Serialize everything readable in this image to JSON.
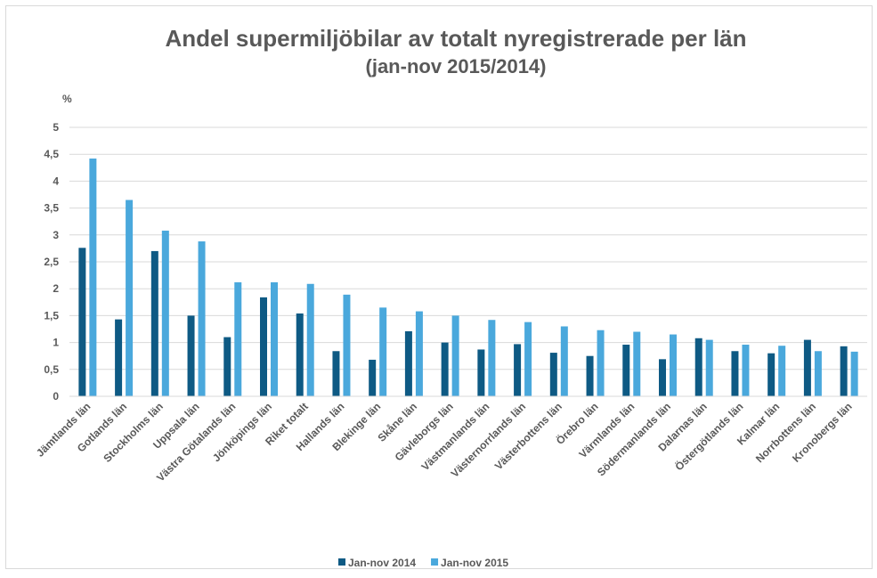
{
  "chart_data": {
    "type": "bar",
    "title": "Andel supermiljöbilar av totalt nyregistrerade per län",
    "subtitle": "(jan-nov 2015/2014)",
    "y_label": "%",
    "categories": [
      "Jämtlands län",
      "Gotlands län",
      "Stockholms län",
      "Uppsala län",
      "Västra Götalands län",
      "Jönköpings län",
      "Riket totalt",
      "Hallands län",
      "Blekinge län",
      "Skåne län",
      "Gävleborgs län",
      "Västmanlands län",
      "Västernorrlands län",
      "Västerbottens län",
      "Örebro län",
      "Värmlands län",
      "Södermanlands län",
      "Dalarnas län",
      "Östergötlands län",
      "Kalmar län",
      "Norrbottens län",
      "Kronobergs län"
    ],
    "series": [
      {
        "name": "Jan-nov 2014",
        "color": "#0e5a84",
        "values": [
          2.76,
          1.43,
          2.7,
          1.5,
          1.1,
          1.84,
          1.54,
          0.84,
          0.68,
          1.21,
          1.0,
          0.87,
          0.97,
          0.81,
          0.75,
          0.96,
          0.69,
          1.08,
          0.84,
          0.8,
          1.05,
          0.93
        ]
      },
      {
        "name": "Jan-nov 2015",
        "color": "#4aa8dc",
        "values": [
          4.42,
          3.65,
          3.08,
          2.88,
          2.12,
          2.12,
          2.09,
          1.89,
          1.65,
          1.58,
          1.5,
          1.42,
          1.38,
          1.3,
          1.23,
          1.2,
          1.15,
          1.05,
          0.96,
          0.94,
          0.84,
          0.83
        ]
      }
    ],
    "ylim": [
      0,
      5
    ],
    "yticks": [
      0,
      {
        "value": 0.5,
        "label": "0,5"
      },
      1,
      {
        "value": 1.5,
        "label": "1,5"
      },
      2,
      {
        "value": 2.5,
        "label": "2,5"
      },
      3,
      {
        "value": 3.5,
        "label": "3,5"
      },
      4,
      {
        "value": 4.5,
        "label": "4,5"
      },
      5
    ],
    "grid": true,
    "legend": "bottom"
  }
}
